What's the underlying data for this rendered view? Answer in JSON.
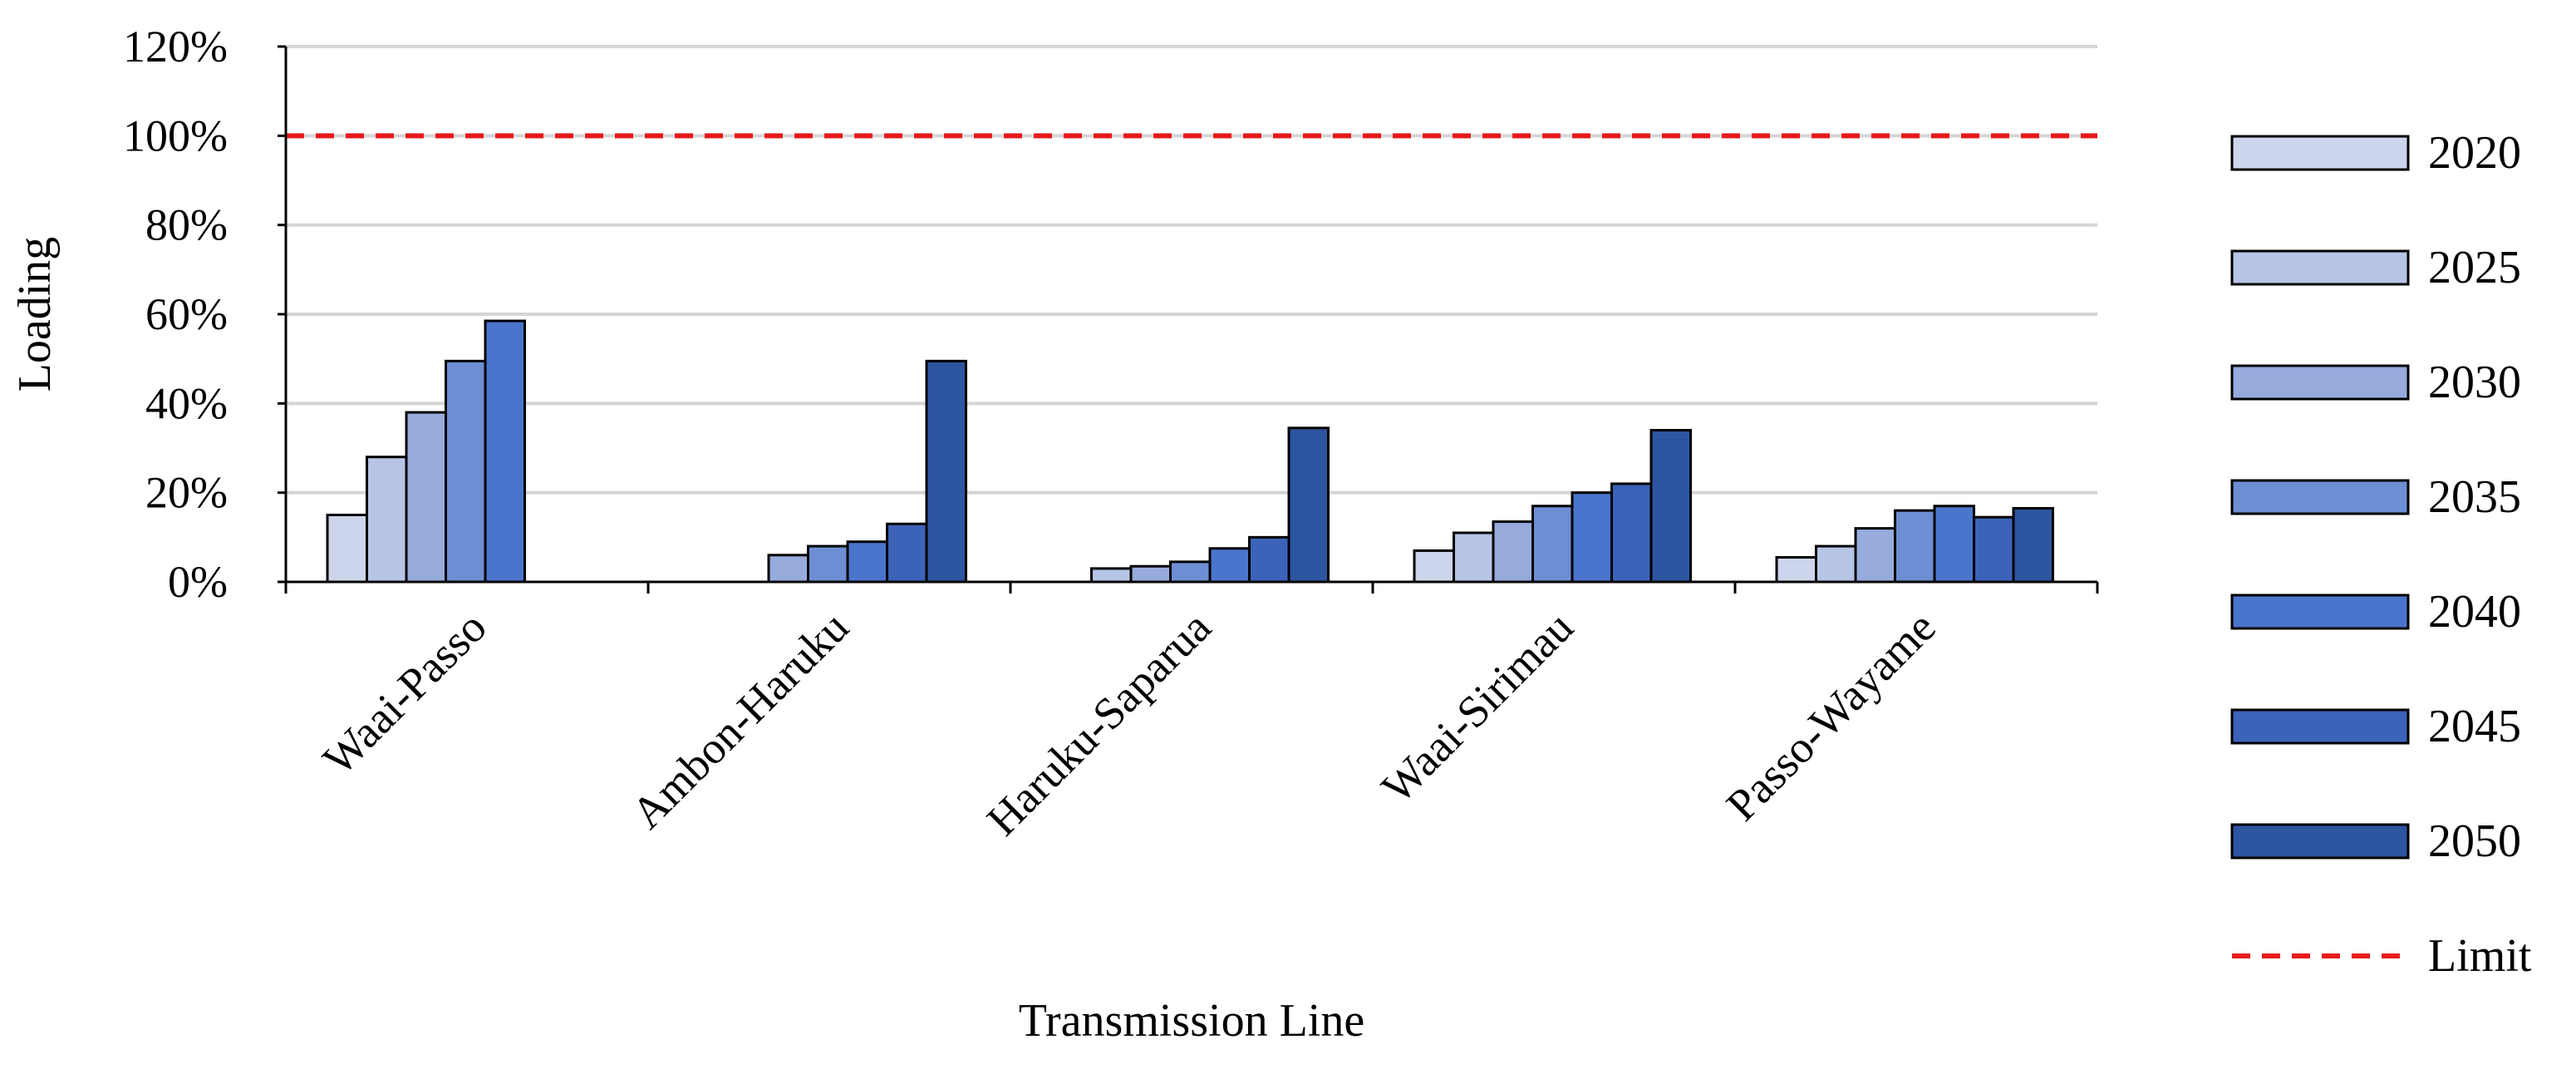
{
  "chart_data": {
    "type": "bar",
    "title": "",
    "xlabel": "Transmission Line",
    "ylabel": "Loading",
    "ylim": [
      0,
      120
    ],
    "yticks": [
      "0%",
      "20%",
      "40%",
      "60%",
      "80%",
      "100%",
      "120%"
    ],
    "categories": [
      "Waai-Passo",
      "Ambon-Haruku",
      "Haruku-Saparua",
      "Waai-Sirimau",
      "Passo-Wayame"
    ],
    "grid": true,
    "legend_position": "right",
    "series": [
      {
        "name": "2020",
        "color": "#ccd5ec",
        "values": [
          15,
          null,
          null,
          7,
          5.5
        ]
      },
      {
        "name": "2025",
        "color": "#b6c4e6",
        "values": [
          28,
          null,
          3,
          11,
          8
        ]
      },
      {
        "name": "2030",
        "color": "#97abdc",
        "values": [
          38,
          6,
          3.5,
          13.5,
          12
        ]
      },
      {
        "name": "2035",
        "color": "#6d8ed3",
        "values": [
          49.5,
          8,
          4.5,
          17,
          16
        ]
      },
      {
        "name": "2040",
        "color": "#4a75cc",
        "values": [
          58.5,
          9,
          7.5,
          20,
          17
        ]
      },
      {
        "name": "2045",
        "color": "#3c63b8",
        "values": [
          null,
          13,
          10,
          22,
          14.5
        ]
      },
      {
        "name": "2050",
        "color": "#2e55a0",
        "values": [
          null,
          49.5,
          34.5,
          34,
          16.5
        ]
      }
    ],
    "reference_line": {
      "name": "Limit",
      "value": 100,
      "color": "#e8191b",
      "style": "dashed"
    }
  }
}
